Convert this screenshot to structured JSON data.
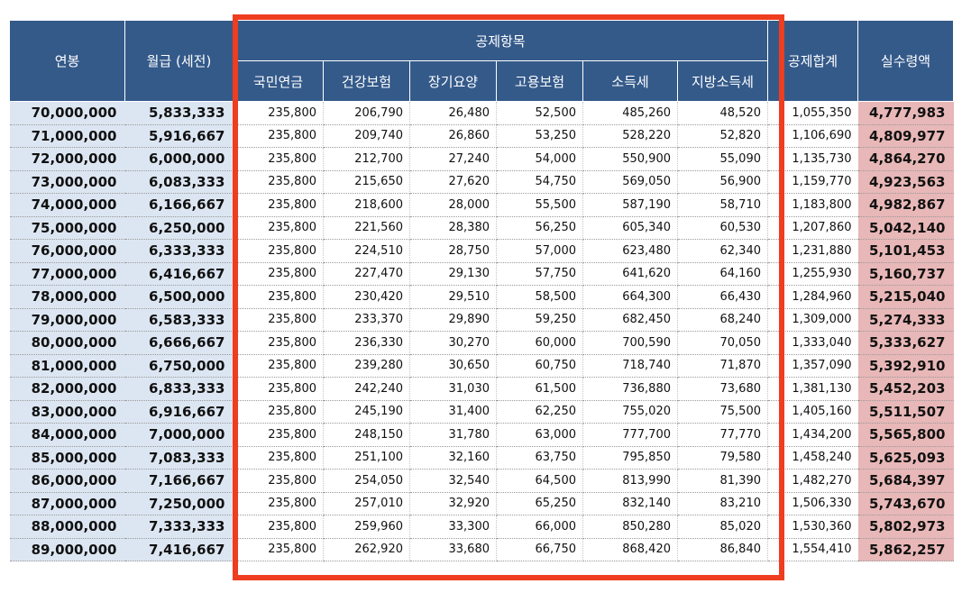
{
  "headers": {
    "salary": "연봉",
    "monthly": "월급 (세전)",
    "deduction_group": "공제항목",
    "deductions": [
      "국민연금",
      "건강보험",
      "장기요양",
      "고용보험",
      "소득세",
      "지방소득세"
    ],
    "total": "공제합계",
    "net": "실수령액"
  },
  "rows": [
    {
      "salary": "70,000,000",
      "monthly": "5,833,333",
      "deductions": [
        "235,800",
        "206,790",
        "26,480",
        "52,500",
        "485,260",
        "48,520"
      ],
      "total": "1,055,350",
      "net": "4,777,983"
    },
    {
      "salary": "71,000,000",
      "monthly": "5,916,667",
      "deductions": [
        "235,800",
        "209,740",
        "26,860",
        "53,250",
        "528,220",
        "52,820"
      ],
      "total": "1,106,690",
      "net": "4,809,977"
    },
    {
      "salary": "72,000,000",
      "monthly": "6,000,000",
      "deductions": [
        "235,800",
        "212,700",
        "27,240",
        "54,000",
        "550,900",
        "55,090"
      ],
      "total": "1,135,730",
      "net": "4,864,270"
    },
    {
      "salary": "73,000,000",
      "monthly": "6,083,333",
      "deductions": [
        "235,800",
        "215,650",
        "27,620",
        "54,750",
        "569,050",
        "56,900"
      ],
      "total": "1,159,770",
      "net": "4,923,563"
    },
    {
      "salary": "74,000,000",
      "monthly": "6,166,667",
      "deductions": [
        "235,800",
        "218,600",
        "28,000",
        "55,500",
        "587,190",
        "58,710"
      ],
      "total": "1,183,800",
      "net": "4,982,867"
    },
    {
      "salary": "75,000,000",
      "monthly": "6,250,000",
      "deductions": [
        "235,800",
        "221,560",
        "28,380",
        "56,250",
        "605,340",
        "60,530"
      ],
      "total": "1,207,860",
      "net": "5,042,140"
    },
    {
      "salary": "76,000,000",
      "monthly": "6,333,333",
      "deductions": [
        "235,800",
        "224,510",
        "28,750",
        "57,000",
        "623,480",
        "62,340"
      ],
      "total": "1,231,880",
      "net": "5,101,453"
    },
    {
      "salary": "77,000,000",
      "monthly": "6,416,667",
      "deductions": [
        "235,800",
        "227,470",
        "29,130",
        "57,750",
        "641,620",
        "64,160"
      ],
      "total": "1,255,930",
      "net": "5,160,737"
    },
    {
      "salary": "78,000,000",
      "monthly": "6,500,000",
      "deductions": [
        "235,800",
        "230,420",
        "29,510",
        "58,500",
        "664,300",
        "66,430"
      ],
      "total": "1,284,960",
      "net": "5,215,040"
    },
    {
      "salary": "79,000,000",
      "monthly": "6,583,333",
      "deductions": [
        "235,800",
        "233,370",
        "29,890",
        "59,250",
        "682,450",
        "68,240"
      ],
      "total": "1,309,000",
      "net": "5,274,333"
    },
    {
      "salary": "80,000,000",
      "monthly": "6,666,667",
      "deductions": [
        "235,800",
        "236,330",
        "30,270",
        "60,000",
        "700,590",
        "70,050"
      ],
      "total": "1,333,040",
      "net": "5,333,627"
    },
    {
      "salary": "81,000,000",
      "monthly": "6,750,000",
      "deductions": [
        "235,800",
        "239,280",
        "30,650",
        "60,750",
        "718,740",
        "71,870"
      ],
      "total": "1,357,090",
      "net": "5,392,910"
    },
    {
      "salary": "82,000,000",
      "monthly": "6,833,333",
      "deductions": [
        "235,800",
        "242,240",
        "31,030",
        "61,500",
        "736,880",
        "73,680"
      ],
      "total": "1,381,130",
      "net": "5,452,203"
    },
    {
      "salary": "83,000,000",
      "monthly": "6,916,667",
      "deductions": [
        "235,800",
        "245,190",
        "31,400",
        "62,250",
        "755,020",
        "75,500"
      ],
      "total": "1,405,160",
      "net": "5,511,507"
    },
    {
      "salary": "84,000,000",
      "monthly": "7,000,000",
      "deductions": [
        "235,800",
        "248,150",
        "31,780",
        "63,000",
        "777,700",
        "77,770"
      ],
      "total": "1,434,200",
      "net": "5,565,800"
    },
    {
      "salary": "85,000,000",
      "monthly": "7,083,333",
      "deductions": [
        "235,800",
        "251,100",
        "32,160",
        "63,750",
        "795,850",
        "79,580"
      ],
      "total": "1,458,240",
      "net": "5,625,093"
    },
    {
      "salary": "86,000,000",
      "monthly": "7,166,667",
      "deductions": [
        "235,800",
        "254,050",
        "32,540",
        "64,500",
        "813,990",
        "81,390"
      ],
      "total": "1,482,270",
      "net": "5,684,397"
    },
    {
      "salary": "87,000,000",
      "monthly": "7,250,000",
      "deductions": [
        "235,800",
        "257,010",
        "32,920",
        "65,250",
        "832,140",
        "83,210"
      ],
      "total": "1,506,330",
      "net": "5,743,670"
    },
    {
      "salary": "88,000,000",
      "monthly": "7,333,333",
      "deductions": [
        "235,800",
        "259,960",
        "33,300",
        "66,000",
        "850,280",
        "85,020"
      ],
      "total": "1,530,360",
      "net": "5,802,973"
    },
    {
      "salary": "89,000,000",
      "monthly": "7,416,667",
      "deductions": [
        "235,800",
        "262,920",
        "33,680",
        "66,750",
        "868,420",
        "86,840"
      ],
      "total": "1,554,410",
      "net": "5,862,257"
    }
  ],
  "colors": {
    "header_bg": "#345a8a",
    "salary_bg": "#dce6f2",
    "net_bg": "#e8b7b7",
    "highlight_border": "#ee3d1f"
  }
}
